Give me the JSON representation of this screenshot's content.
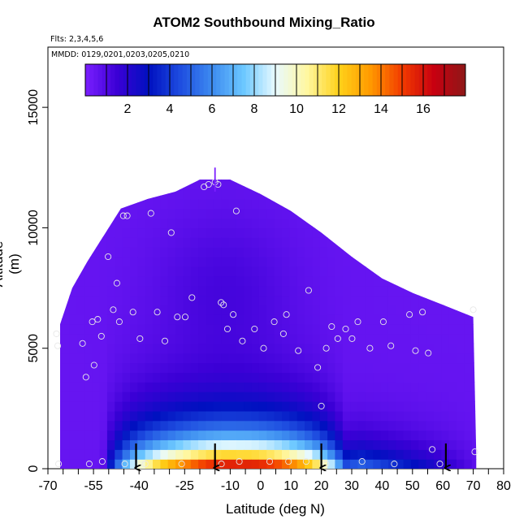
{
  "chart_data": {
    "type": "heatmap",
    "title": "ATOM2 Southbound Mixing_Ratio",
    "flights_label": "Flts: 2,3,4,5,6",
    "dates_label": "MMDD: 0129,0201,0203,0205,0210",
    "xlabel": "Latitude (deg N)",
    "ylabel": "Altitude (m)",
    "xlim": [
      -70,
      80
    ],
    "ylim": [
      0,
      17500
    ],
    "x_ticks": [
      -70,
      -55,
      -40,
      -25,
      -10,
      0,
      10,
      20,
      30,
      40,
      50,
      60,
      70,
      80
    ],
    "x_tick_labels": [
      "-70",
      "-55",
      "-40",
      "-25",
      "-10",
      "0",
      "10",
      "20",
      "30",
      "40",
      "50",
      "60",
      "70",
      "80"
    ],
    "x_minor_ticks": [
      -65,
      -60,
      -50,
      -45,
      -35,
      -30,
      -20,
      -15,
      -5,
      5,
      15,
      25,
      35,
      45,
      55,
      65,
      75
    ],
    "y_ticks": [
      0,
      5000,
      10000,
      15000
    ],
    "y_tick_labels": [
      "0",
      "5000",
      "10000",
      "15000"
    ],
    "grid": false,
    "colorbar": {
      "min": 0,
      "max": 18,
      "ticks": [
        2,
        4,
        6,
        8,
        10,
        12,
        14,
        16
      ],
      "tick_labels": [
        "2",
        "4",
        "6",
        "8",
        "10",
        "12",
        "14",
        "16"
      ],
      "colors": [
        "#7b1fff",
        "#3b00d6",
        "#0010c0",
        "#1e4de0",
        "#3d8bf0",
        "#6cc8ff",
        "#e8faff",
        "#fff7a0",
        "#ffd21a",
        "#ff9900",
        "#f23b00",
        "#c80010",
        "#8e1818"
      ]
    },
    "domain_profile": [
      [
        -66,
        6000
      ],
      [
        -62,
        7500
      ],
      [
        -57,
        8600
      ],
      [
        -52,
        9600
      ],
      [
        -46,
        10800
      ],
      [
        -37,
        11200
      ],
      [
        -28,
        11500
      ],
      [
        -20,
        12000
      ],
      [
        -10,
        12000
      ],
      [
        0,
        11400
      ],
      [
        10,
        10700
      ],
      [
        20,
        9800
      ],
      [
        30,
        8800
      ],
      [
        40,
        7900
      ],
      [
        50,
        7300
      ],
      [
        60,
        6800
      ],
      [
        70,
        6300
      ],
      [
        71,
        600
      ]
    ],
    "sample_points": [
      [
        -67.2,
        5600
      ],
      [
        -66.8,
        5100
      ],
      [
        -58.6,
        5200
      ],
      [
        -57.5,
        3800
      ],
      [
        -55.4,
        6100
      ],
      [
        -54.8,
        4300
      ],
      [
        -53.6,
        6200
      ],
      [
        -52.4,
        5500
      ],
      [
        -50.2,
        8800
      ],
      [
        -48.5,
        6600
      ],
      [
        -47.3,
        7700
      ],
      [
        -46.5,
        6100
      ],
      [
        -45.2,
        10500
      ],
      [
        -43.9,
        10500
      ],
      [
        -42.0,
        6500
      ],
      [
        -39.7,
        5400
      ],
      [
        -36.1,
        10600
      ],
      [
        -34.0,
        6500
      ],
      [
        -31.5,
        5300
      ],
      [
        -29.4,
        9800
      ],
      [
        -27.4,
        6300
      ],
      [
        -24.8,
        6300
      ],
      [
        -22.6,
        7100
      ],
      [
        -18.6,
        11700
      ],
      [
        -17.1,
        11800
      ],
      [
        -15.0,
        11900
      ],
      [
        -14.0,
        11800
      ],
      [
        -13.0,
        6900
      ],
      [
        -12.2,
        6800
      ],
      [
        -10.9,
        5800
      ],
      [
        -9.0,
        6400
      ],
      [
        -8.0,
        10700
      ],
      [
        -6.0,
        5300
      ],
      [
        -2.0,
        5800
      ],
      [
        1.0,
        5000
      ],
      [
        4.5,
        6100
      ],
      [
        7.5,
        5600
      ],
      [
        8.5,
        6400
      ],
      [
        12.4,
        4900
      ],
      [
        15.8,
        7400
      ],
      [
        18.8,
        4200
      ],
      [
        20.0,
        2600
      ],
      [
        21.6,
        5000
      ],
      [
        23.4,
        5900
      ],
      [
        25.4,
        5400
      ],
      [
        28.0,
        5800
      ],
      [
        30.1,
        5400
      ],
      [
        32.0,
        6100
      ],
      [
        36.0,
        5000
      ],
      [
        40.4,
        6100
      ],
      [
        42.9,
        5100
      ],
      [
        49.0,
        6400
      ],
      [
        51.0,
        4900
      ],
      [
        53.3,
        6500
      ],
      [
        55.2,
        4800
      ],
      [
        56.5,
        800
      ],
      [
        70.0,
        6600
      ],
      [
        70.5,
        700
      ],
      [
        -66.5,
        200
      ],
      [
        -56.4,
        200
      ],
      [
        -52.1,
        300
      ],
      [
        -44.7,
        200
      ],
      [
        -38.0,
        200
      ],
      [
        -26.0,
        200
      ],
      [
        -12.9,
        200
      ],
      [
        -7.0,
        300
      ],
      [
        3.0,
        300
      ],
      [
        9.2,
        300
      ],
      [
        15.0,
        300
      ],
      [
        21.5,
        200
      ],
      [
        33.4,
        300
      ],
      [
        44.0,
        200
      ],
      [
        59.0,
        200
      ]
    ],
    "arrows_x": [
      -41,
      -15,
      20,
      61
    ],
    "top_marker_x": -15
  }
}
